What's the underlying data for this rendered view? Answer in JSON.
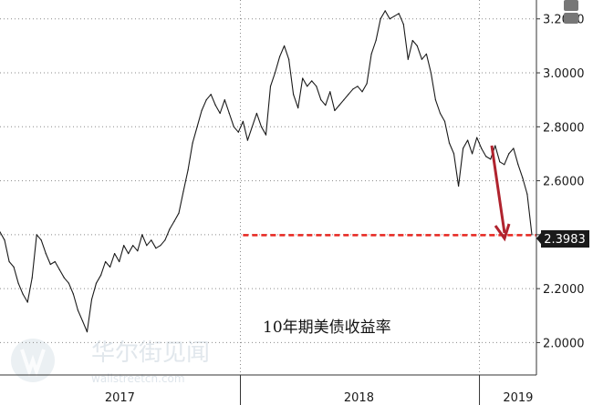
{
  "chart_data": {
    "type": "line",
    "title": "",
    "xlabel": "",
    "ylabel": "",
    "annotation_text": "10年期美债收益率",
    "x_tick_labels": [
      "2017",
      "2018",
      "2019"
    ],
    "y_tick_labels": [
      "2.0000",
      "2.2000",
      "2.4000",
      "2.6000",
      "2.8000",
      "3.0000",
      "3.2000"
    ],
    "y_ticks": [
      2.0,
      2.2,
      2.4,
      2.6,
      2.8,
      3.0,
      3.2
    ],
    "ylim": [
      1.88,
      3.27
    ],
    "xlim": [
      "2016-12-30",
      "2019-03-29"
    ],
    "x_tick_dates": [
      "2017-07-01",
      "2018-07-01",
      "2019-03-01"
    ],
    "year_boundaries": [
      "2018-01-01",
      "2019-01-01"
    ],
    "grid": "horizontal dotted",
    "last_value_label": "2.3983",
    "reference_value": 2.3983,
    "reference_start": "2018-01-05",
    "series": [
      {
        "x": [
          "2016-12-30",
          "2017-01-06",
          "2017-01-13",
          "2017-01-20",
          "2017-01-27",
          "2017-02-03",
          "2017-02-10",
          "2017-02-17",
          "2017-02-24",
          "2017-03-03",
          "2017-03-10",
          "2017-03-17",
          "2017-03-24",
          "2017-03-31",
          "2017-04-07",
          "2017-04-14",
          "2017-04-21",
          "2017-04-28",
          "2017-05-05",
          "2017-05-12",
          "2017-05-19",
          "2017-05-26",
          "2017-06-02",
          "2017-06-09",
          "2017-06-16",
          "2017-06-23",
          "2017-06-30",
          "2017-07-07",
          "2017-07-14",
          "2017-07-21",
          "2017-07-28",
          "2017-08-04",
          "2017-08-11",
          "2017-08-18",
          "2017-08-25",
          "2017-09-01",
          "2017-09-08",
          "2017-09-15",
          "2017-09-22",
          "2017-09-29",
          "2017-10-06",
          "2017-10-13",
          "2017-10-20",
          "2017-10-27",
          "2017-11-03",
          "2017-11-10",
          "2017-11-17",
          "2017-11-24",
          "2017-12-01",
          "2017-12-08",
          "2017-12-15",
          "2017-12-22",
          "2017-12-29",
          "2018-01-05",
          "2018-01-12",
          "2018-01-19",
          "2018-01-26",
          "2018-02-02",
          "2018-02-09",
          "2018-02-16",
          "2018-02-23",
          "2018-03-02",
          "2018-03-09",
          "2018-03-16",
          "2018-03-23",
          "2018-03-30",
          "2018-04-06",
          "2018-04-13",
          "2018-04-20",
          "2018-04-27",
          "2018-05-04",
          "2018-05-11",
          "2018-05-18",
          "2018-05-25",
          "2018-06-01",
          "2018-06-08",
          "2018-06-15",
          "2018-06-22",
          "2018-06-29",
          "2018-07-06",
          "2018-07-13",
          "2018-07-20",
          "2018-07-27",
          "2018-08-03",
          "2018-08-10",
          "2018-08-17",
          "2018-08-24",
          "2018-08-31",
          "2018-09-07",
          "2018-09-14",
          "2018-09-21",
          "2018-09-28",
          "2018-10-05",
          "2018-10-12",
          "2018-10-19",
          "2018-10-26",
          "2018-11-02",
          "2018-11-09",
          "2018-11-16",
          "2018-11-23",
          "2018-11-30",
          "2018-12-07",
          "2018-12-14",
          "2018-12-21",
          "2018-12-28",
          "2019-01-04",
          "2019-01-11",
          "2019-01-18",
          "2019-01-25",
          "2019-02-01",
          "2019-02-08",
          "2019-02-15",
          "2019-02-22",
          "2019-03-01",
          "2019-03-08",
          "2019-03-15",
          "2019-03-22"
        ],
        "values": [
          2.41,
          2.38,
          2.3,
          2.28,
          2.22,
          2.18,
          2.15,
          2.24,
          2.4,
          2.38,
          2.33,
          2.29,
          2.3,
          2.27,
          2.24,
          2.22,
          2.18,
          2.12,
          2.08,
          2.04,
          2.16,
          2.22,
          2.25,
          2.3,
          2.28,
          2.33,
          2.3,
          2.36,
          2.33,
          2.36,
          2.34,
          2.4,
          2.36,
          2.38,
          2.35,
          2.36,
          2.38,
          2.42,
          2.45,
          2.48,
          2.56,
          2.64,
          2.74,
          2.8,
          2.86,
          2.9,
          2.92,
          2.88,
          2.85,
          2.9,
          2.85,
          2.8,
          2.78,
          2.82,
          2.75,
          2.8,
          2.85,
          2.8,
          2.77,
          2.95,
          3.0,
          3.06,
          3.1,
          3.05,
          2.92,
          2.87,
          2.98,
          2.95,
          2.97,
          2.95,
          2.9,
          2.88,
          2.93,
          2.86,
          2.88,
          2.9,
          2.92,
          2.94,
          2.95,
          2.93,
          2.96,
          3.07,
          3.12,
          3.2,
          3.23,
          3.2,
          3.21,
          3.22,
          3.18,
          3.05,
          3.12,
          3.1,
          3.05,
          3.07,
          3.0,
          2.9,
          2.85,
          2.82,
          2.74,
          2.7,
          2.58,
          2.72,
          2.75,
          2.7,
          2.76,
          2.72,
          2.69,
          2.68,
          2.73,
          2.67,
          2.66,
          2.7,
          2.72,
          2.66,
          2.61,
          2.55,
          2.4
        ]
      }
    ],
    "colors": {
      "line": "#1a1a1a",
      "reference_line": "#e8251f",
      "arrow": "#b0232e",
      "badge_bg": "#1a1a1a",
      "grid": "#8a8a8a"
    }
  }
}
